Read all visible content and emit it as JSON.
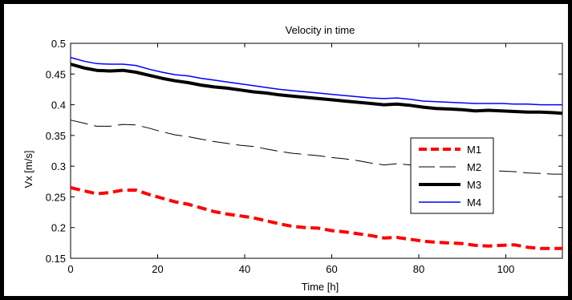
{
  "chart_data": {
    "type": "line",
    "title": "Velocity in time",
    "xlabel": "Time [h]",
    "ylabel": "Vx [m/s]",
    "xlim": [
      0,
      113
    ],
    "ylim": [
      0.15,
      0.5
    ],
    "xticks": [
      0,
      20,
      40,
      60,
      80,
      100
    ],
    "xtick_labels": [
      "0",
      "20",
      "40",
      "60",
      "80",
      "100"
    ],
    "yticks": [
      0.15,
      0.2,
      0.25,
      0.3,
      0.35,
      0.4,
      0.45,
      0.5
    ],
    "ytick_labels": [
      "0.15",
      "0.2",
      "0.25",
      "0.3",
      "0.35",
      "0.4",
      "0.45",
      "0.5"
    ],
    "grid": false,
    "legend_position": "right",
    "series": [
      {
        "name": "M1",
        "color": "#ff0000",
        "style": "dashed-thick",
        "x": [
          0,
          3,
          6,
          9,
          12,
          15,
          18,
          21,
          24,
          27,
          30,
          33,
          36,
          39,
          42,
          45,
          48,
          51,
          54,
          57,
          60,
          63,
          66,
          69,
          72,
          75,
          78,
          81,
          84,
          87,
          90,
          93,
          96,
          99,
          102,
          105,
          108,
          111,
          113
        ],
        "y": [
          0.265,
          0.26,
          0.255,
          0.257,
          0.261,
          0.261,
          0.254,
          0.248,
          0.242,
          0.238,
          0.232,
          0.226,
          0.222,
          0.219,
          0.216,
          0.211,
          0.206,
          0.202,
          0.2,
          0.199,
          0.195,
          0.193,
          0.19,
          0.187,
          0.183,
          0.184,
          0.181,
          0.178,
          0.176,
          0.175,
          0.174,
          0.171,
          0.17,
          0.171,
          0.172,
          0.168,
          0.166,
          0.166,
          0.166
        ]
      },
      {
        "name": "M2",
        "color": "#000000",
        "style": "dashed-thin",
        "x": [
          0,
          3,
          6,
          9,
          12,
          15,
          18,
          21,
          24,
          27,
          30,
          33,
          36,
          39,
          42,
          45,
          48,
          51,
          54,
          57,
          60,
          63,
          66,
          69,
          72,
          75,
          78,
          81,
          84,
          87,
          90,
          93,
          96,
          99,
          102,
          105,
          108,
          111,
          113
        ],
        "y": [
          0.375,
          0.37,
          0.365,
          0.365,
          0.368,
          0.367,
          0.362,
          0.356,
          0.351,
          0.348,
          0.344,
          0.34,
          0.337,
          0.334,
          0.332,
          0.328,
          0.324,
          0.321,
          0.319,
          0.317,
          0.314,
          0.312,
          0.309,
          0.305,
          0.302,
          0.304,
          0.302,
          0.301,
          0.3,
          0.298,
          0.296,
          0.293,
          0.292,
          0.292,
          0.291,
          0.289,
          0.288,
          0.287,
          0.287
        ]
      },
      {
        "name": "M3",
        "color": "#000000",
        "style": "solid-thick",
        "x": [
          0,
          3,
          6,
          9,
          12,
          15,
          18,
          21,
          24,
          27,
          30,
          33,
          36,
          39,
          42,
          45,
          48,
          51,
          54,
          57,
          60,
          63,
          66,
          69,
          72,
          75,
          78,
          81,
          84,
          87,
          90,
          93,
          96,
          99,
          102,
          105,
          108,
          111,
          113
        ],
        "y": [
          0.466,
          0.46,
          0.456,
          0.455,
          0.456,
          0.453,
          0.448,
          0.443,
          0.439,
          0.436,
          0.432,
          0.429,
          0.427,
          0.424,
          0.421,
          0.419,
          0.416,
          0.414,
          0.412,
          0.41,
          0.408,
          0.406,
          0.404,
          0.402,
          0.4,
          0.401,
          0.399,
          0.396,
          0.394,
          0.393,
          0.392,
          0.39,
          0.391,
          0.39,
          0.389,
          0.388,
          0.388,
          0.387,
          0.386
        ]
      },
      {
        "name": "M4",
        "color": "#0000ff",
        "style": "solid",
        "x": [
          0,
          3,
          6,
          9,
          12,
          15,
          18,
          21,
          24,
          27,
          30,
          33,
          36,
          39,
          42,
          45,
          48,
          51,
          54,
          57,
          60,
          63,
          66,
          69,
          72,
          75,
          78,
          81,
          84,
          87,
          90,
          93,
          96,
          99,
          102,
          105,
          108,
          111,
          113
        ],
        "y": [
          0.477,
          0.471,
          0.467,
          0.466,
          0.466,
          0.464,
          0.458,
          0.453,
          0.449,
          0.447,
          0.443,
          0.44,
          0.437,
          0.434,
          0.431,
          0.428,
          0.425,
          0.423,
          0.421,
          0.419,
          0.417,
          0.415,
          0.413,
          0.411,
          0.41,
          0.411,
          0.409,
          0.406,
          0.405,
          0.404,
          0.403,
          0.402,
          0.402,
          0.402,
          0.401,
          0.401,
          0.4,
          0.4,
          0.4
        ]
      }
    ]
  }
}
